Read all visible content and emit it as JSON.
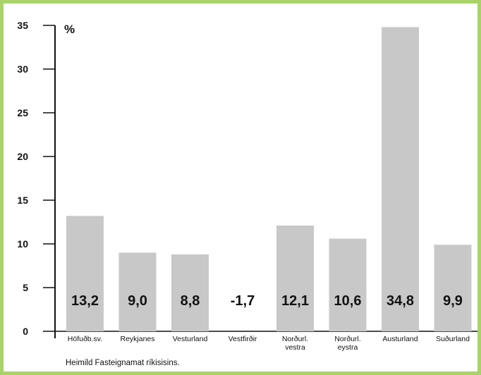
{
  "chart_data": {
    "type": "bar",
    "categories": [
      "Höfuðb.sv.",
      "Reykjanes",
      "Vesturland",
      "Vestfirðir",
      "Norðurl. vestra",
      "Norðurl. eystra",
      "Austurland",
      "Suðurland"
    ],
    "category_lines": [
      [
        "Höfuðb.sv."
      ],
      [
        "Reykjanes"
      ],
      [
        "Vesturland"
      ],
      [
        "Vestfirðir"
      ],
      [
        "Norðurl.",
        "vestra"
      ],
      [
        "Norðurl.",
        "eystra"
      ],
      [
        "Austurland"
      ],
      [
        "Suðurland"
      ]
    ],
    "values": [
      13.2,
      9.0,
      8.8,
      -1.7,
      12.1,
      10.6,
      34.8,
      9.9
    ],
    "value_labels": [
      "13,2",
      "9,0",
      "8,8",
      "-1,7",
      "12,1",
      "10,6",
      "34,8",
      "9,9"
    ],
    "ylabel": "%",
    "ylim": [
      0,
      35
    ],
    "yticks": [
      0,
      5,
      10,
      15,
      20,
      25,
      30,
      35
    ],
    "grid": false,
    "bar_color": "#c8c8c8"
  },
  "source": "Heimild Fasteignamat ríkisisins.",
  "colors": {
    "border": "#a9d26a",
    "background": "#ffffff",
    "text": "#111111"
  }
}
